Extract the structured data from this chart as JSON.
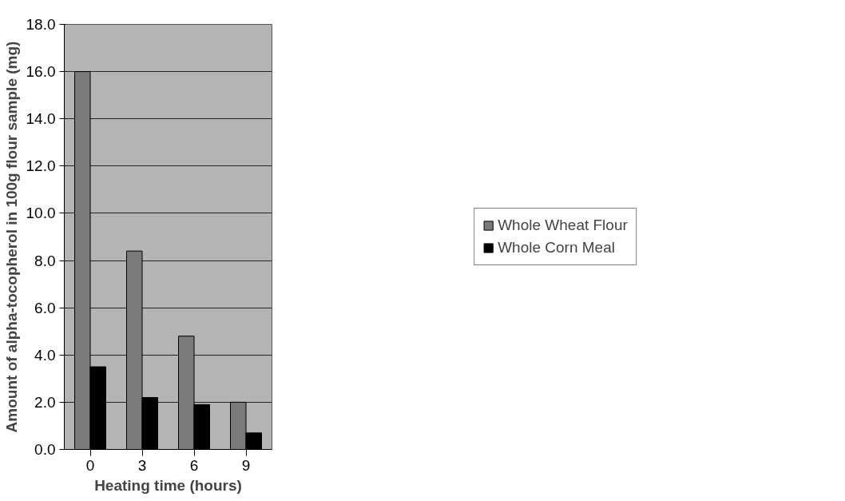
{
  "chart_data": {
    "type": "bar",
    "categories": [
      "0",
      "3",
      "6",
      "9"
    ],
    "xlabel": "Heating time (hours)",
    "ylabel": "Amount of alpha-tocopherol in 100g flour sample (mg)",
    "series": [
      {
        "name": "Whole Wheat Flour",
        "color": "#7a7a7a",
        "values": [
          16.0,
          8.4,
          4.8,
          2.0
        ]
      },
      {
        "name": "Whole Corn Meal",
        "color": "#000000",
        "values": [
          3.5,
          2.2,
          1.9,
          0.7
        ]
      }
    ],
    "ylim": [
      0,
      18
    ],
    "yticks": [
      {
        "value": 0,
        "label": "0.0"
      },
      {
        "value": 2,
        "label": "2.0"
      },
      {
        "value": 4,
        "label": "4.0"
      },
      {
        "value": 6,
        "label": "6.0"
      },
      {
        "value": 8,
        "label": "8.0"
      },
      {
        "value": 10,
        "label": "10.0"
      },
      {
        "value": 12,
        "label": "12.0"
      },
      {
        "value": 14,
        "label": "14.0"
      },
      {
        "value": 16,
        "label": "16.0"
      },
      {
        "value": 18,
        "label": "18.0"
      }
    ],
    "grid": "y",
    "legend": "right"
  }
}
